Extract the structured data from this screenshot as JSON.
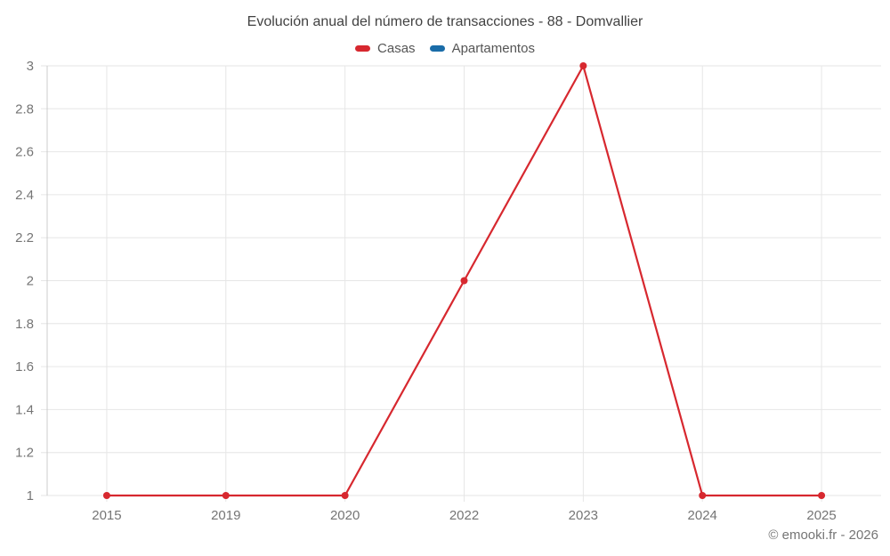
{
  "chart": {
    "title": "Evolución anual del número de transacciones - 88 - Domvallier",
    "footer": "© emooki.fr - 2026"
  },
  "chart_data": {
    "type": "line",
    "title": "Evolución anual del número de transacciones - 88 - Domvallier",
    "categories": [
      "2015",
      "2019",
      "2020",
      "2022",
      "2023",
      "2024",
      "2025"
    ],
    "series": [
      {
        "name": "Casas",
        "color": "#d7282f",
        "values": [
          1,
          1,
          1,
          2,
          3,
          1,
          1
        ]
      },
      {
        "name": "Apartamentos",
        "color": "#1a6ca8",
        "values": []
      }
    ],
    "xlabel": "",
    "ylabel": "",
    "ylim": [
      1,
      3
    ],
    "y_ticks": [
      "1",
      "1.2",
      "1.4",
      "1.6",
      "1.8",
      "2",
      "2.2",
      "2.4",
      "2.6",
      "2.8",
      "3"
    ],
    "grid": true,
    "legend_position": "top",
    "marker": "circle"
  },
  "colors": {
    "casas": "#d7282f",
    "apartamentos": "#1a6ca8",
    "gridline": "#e6e6e6",
    "axis_line": "#cccccc",
    "tick_text": "#757575",
    "title_text": "#424242"
  }
}
